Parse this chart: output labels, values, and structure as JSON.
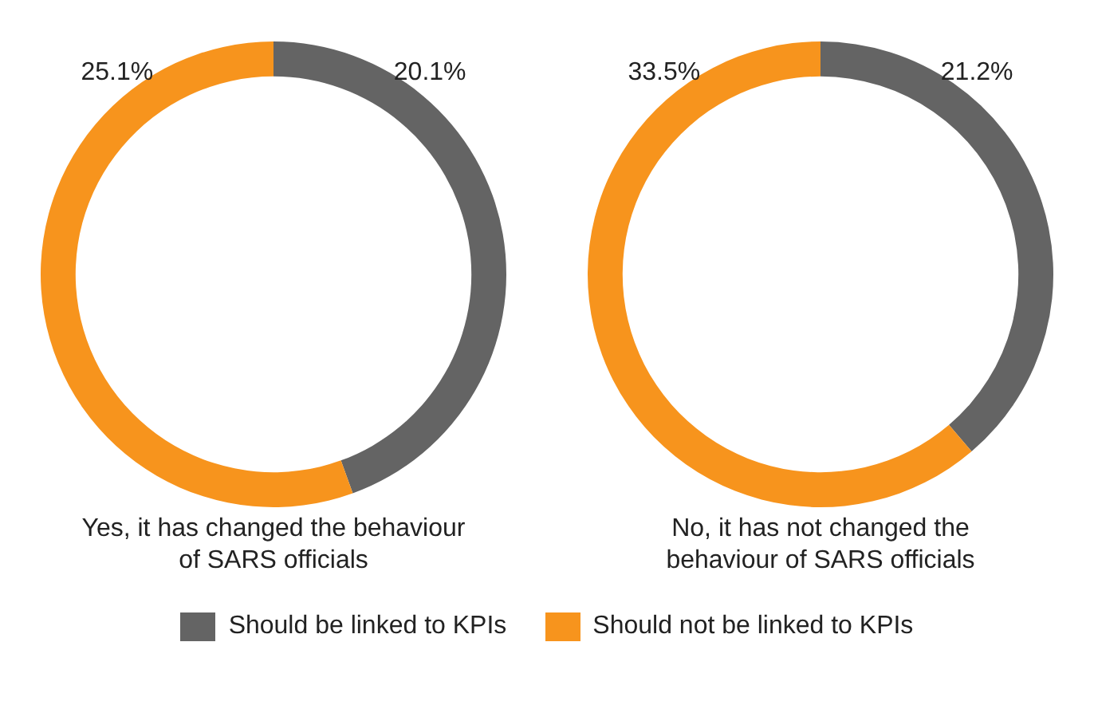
{
  "chart_data": [
    {
      "type": "donut",
      "title": "Yes, it has changed the behaviour of SARS officials",
      "categories": [
        "Should be linked to KPIs",
        "Should not be linked to KPIs"
      ],
      "values": [
        20.1,
        25.1
      ],
      "value_labels": [
        "20.1%",
        "25.1%"
      ],
      "colors": [
        "#646464",
        "#f7941d"
      ],
      "legend": "bottom"
    },
    {
      "type": "donut",
      "title": "No, it has not changed the behaviour of SARS officials",
      "values": [
        21.2,
        33.5
      ],
      "value_labels": [
        "21.2%",
        "33.5%"
      ],
      "colors": [
        "#646464",
        "#f7941d"
      ]
    }
  ]
}
